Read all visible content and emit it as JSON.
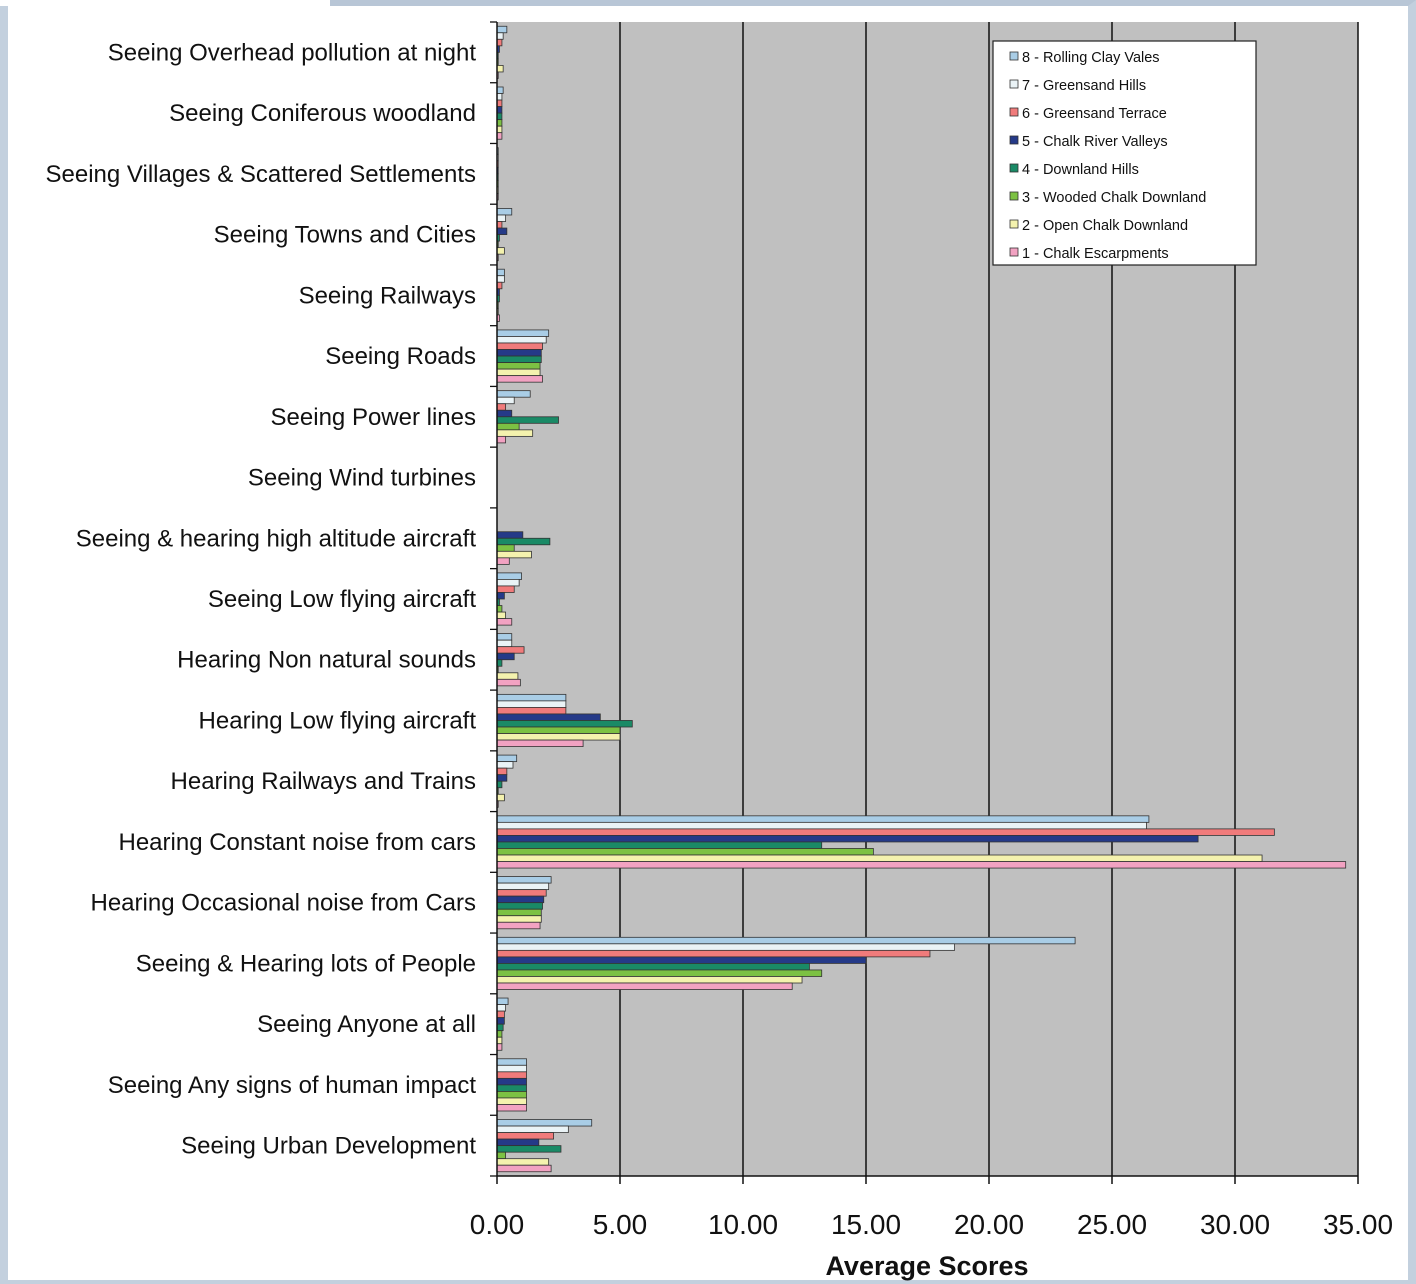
{
  "chart_data": {
    "type": "bar",
    "orientation": "horizontal",
    "title": "",
    "xlabel": "Average Scores",
    "ylabel": "",
    "xlim": [
      0,
      35
    ],
    "x_ticks": [
      "0.00",
      "5.00",
      "10.00",
      "15.00",
      "20.00",
      "25.00",
      "30.00",
      "35.00"
    ],
    "grid": true,
    "legend_position": "top-right",
    "plot_background": "#c0c0c0",
    "categories": [
      "Seeing Overhead pollution at night",
      "Seeing Coniferous woodland",
      "Seeing Villages & Scattered Settlements",
      "Seeing Towns and Cities",
      "Seeing Railways",
      "Seeing Roads",
      "Seeing Power lines",
      "Seeing Wind turbines",
      "Seeing & hearing high altitude aircraft",
      "Seeing Low flying aircraft",
      "Hearing Non natural sounds",
      "Hearing Low flying aircraft",
      "Hearing Railways and Trains",
      "Hearing Constant noise from cars",
      "Hearing Occasional noise from Cars",
      "Seeing & Hearing lots of People",
      "Seeing Anyone at all",
      "Seeing Any signs of human impact",
      "Seeing Urban Development"
    ],
    "series": [
      {
        "name": "8 - Rolling Clay Vales",
        "color": "#a9cde6",
        "values": [
          0.4,
          0.25,
          0.05,
          0.6,
          0.3,
          2.1,
          1.35,
          0,
          0,
          1.0,
          0.6,
          2.8,
          0.8,
          26.5,
          2.2,
          23.5,
          0.45,
          1.2,
          3.85
        ]
      },
      {
        "name": "7 - Greensand Hills",
        "color": "#eaf3f6",
        "values": [
          0.25,
          0.2,
          0.05,
          0.35,
          0.3,
          2.0,
          0.7,
          0,
          0,
          0.9,
          0.6,
          2.8,
          0.65,
          26.4,
          2.1,
          18.6,
          0.35,
          1.2,
          2.9
        ]
      },
      {
        "name": "6 - Greensand Terrace",
        "color": "#f07b7b",
        "values": [
          0.2,
          0.2,
          0.05,
          0.2,
          0.2,
          1.85,
          0.35,
          0,
          0,
          0.7,
          1.1,
          2.8,
          0.4,
          31.6,
          2.0,
          17.6,
          0.3,
          1.2,
          2.3
        ]
      },
      {
        "name": "5 - Chalk River Valleys",
        "color": "#253a88",
        "values": [
          0.1,
          0.2,
          0.05,
          0.4,
          0.1,
          1.8,
          0.6,
          0,
          1.05,
          0.3,
          0.7,
          4.2,
          0.4,
          28.5,
          1.9,
          15.0,
          0.3,
          1.2,
          1.7
        ]
      },
      {
        "name": "4 - Downland Hills",
        "color": "#1a8a66",
        "values": [
          0.05,
          0.2,
          0.05,
          0.1,
          0.1,
          1.8,
          2.5,
          0,
          2.15,
          0.1,
          0.2,
          5.5,
          0.2,
          13.2,
          1.85,
          12.7,
          0.25,
          1.2,
          2.6
        ]
      },
      {
        "name": "3 - Wooded Chalk Downland",
        "color": "#7cc143",
        "values": [
          0.05,
          0.2,
          0.05,
          0.05,
          0.05,
          1.75,
          0.9,
          0,
          0.7,
          0.2,
          0.05,
          5.0,
          0.05,
          15.3,
          1.8,
          13.2,
          0.2,
          1.2,
          0.35
        ]
      },
      {
        "name": "2 - Open Chalk Downland",
        "color": "#f4f2ae",
        "values": [
          0.25,
          0.2,
          0.05,
          0.3,
          0.05,
          1.75,
          1.45,
          0,
          1.4,
          0.35,
          0.85,
          5.0,
          0.3,
          31.1,
          1.8,
          12.4,
          0.2,
          1.2,
          2.1
        ]
      },
      {
        "name": "1 - Chalk Escarpments",
        "color": "#f2a2c2",
        "values": [
          0.05,
          0.2,
          0.05,
          0.05,
          0.1,
          1.85,
          0.35,
          0,
          0.5,
          0.6,
          0.95,
          3.5,
          0.05,
          34.5,
          1.75,
          12.0,
          0.2,
          1.2,
          2.2
        ]
      }
    ]
  }
}
